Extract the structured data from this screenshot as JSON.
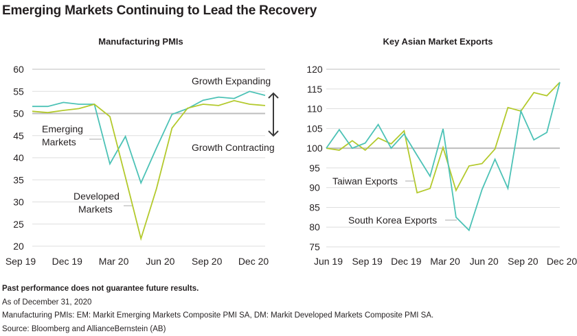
{
  "title": "Emerging Markets Continuing to Lead the Recovery",
  "colors": {
    "teal": "#4cc2b6",
    "green": "#b3c92b",
    "grid": "#dedede",
    "baseline": "#bdbdbd",
    "text": "#231f20",
    "arrow": "#3a3a3a"
  },
  "chart_data": [
    {
      "type": "line",
      "title": "Manufacturing PMIs",
      "xlabel": "",
      "ylabel": "",
      "ylim": [
        20,
        60
      ],
      "yticks": [
        20,
        25,
        30,
        35,
        40,
        45,
        50,
        55,
        60
      ],
      "baseline": 50,
      "grid": true,
      "x": [
        "Sep 19",
        "Oct 19",
        "Nov 19",
        "Dec 19",
        "Jan 20",
        "Feb 20",
        "Mar 20",
        "Apr 20",
        "May 20",
        "Jun 20",
        "Jul 20",
        "Aug 20",
        "Sep 20",
        "Oct 20",
        "Nov 20",
        "Dec 20"
      ],
      "xtick_labels": [
        "Sep 19",
        "Dec 19",
        "Mar 20",
        "Jun 20",
        "Sep 20",
        "Dec 20"
      ],
      "series": [
        {
          "name": "Emerging Markets",
          "color": "teal",
          "values": [
            51.6,
            51.6,
            52.5,
            52.1,
            52.1,
            38.6,
            44.8,
            34.3,
            42.2,
            49.8,
            51.1,
            53.0,
            53.7,
            53.4,
            55.0,
            54.1
          ]
        },
        {
          "name": "Developed Markets",
          "color": "green",
          "values": [
            50.5,
            50.2,
            50.7,
            51.1,
            52.1,
            49.3,
            35.6,
            21.7,
            33.0,
            46.7,
            51.2,
            52.1,
            51.8,
            52.9,
            52.1,
            51.8
          ]
        }
      ],
      "annotations": {
        "emerging_label": [
          "Emerging",
          "Markets"
        ],
        "developed_label": [
          "Developed",
          "Markets"
        ],
        "growth_expanding": "Growth Expanding",
        "growth_contracting": "Growth Contracting"
      }
    },
    {
      "type": "line",
      "title": "Key Asian Market Exports",
      "xlabel": "",
      "ylabel": "",
      "ylim": [
        75,
        120
      ],
      "yticks": [
        75,
        80,
        85,
        90,
        95,
        100,
        105,
        110,
        115,
        120
      ],
      "baseline": 100,
      "grid": true,
      "x": [
        "Jun 19",
        "Jul 19",
        "Aug 19",
        "Sep 19",
        "Oct 19",
        "Nov 19",
        "Dec 19",
        "Jan 20",
        "Feb 20",
        "Mar 20",
        "Apr 20",
        "May 20",
        "Jun 20",
        "Jul 20",
        "Aug 20",
        "Sep 20",
        "Oct 20",
        "Nov 20",
        "Dec 20"
      ],
      "xtick_labels": [
        "Jun 19",
        "Sep 19",
        "Dec 19",
        "Mar 20",
        "Jun 20",
        "Sep 20",
        "Dec 20"
      ],
      "series": [
        {
          "name": "Taiwan Exports",
          "color": "green",
          "values": [
            100,
            99.5,
            101.9,
            99.5,
            102.6,
            101.1,
            104.4,
            88.7,
            89.8,
            100.2,
            89.3,
            95.5,
            96.1,
            99.8,
            110.3,
            109.4,
            114.1,
            113.3,
            116.7
          ]
        },
        {
          "name": "South Korea Exports",
          "color": "teal",
          "values": [
            100,
            104.7,
            100,
            101.3,
            106.0,
            100,
            103.6,
            98.2,
            92.9,
            104.9,
            82.5,
            79.2,
            89.5,
            97.2,
            89.8,
            109.4,
            102.1,
            104.0,
            116.7
          ]
        }
      ],
      "annotations": {
        "taiwan_label": "Taiwan Exports",
        "korea_label": "South Korea Exports"
      }
    }
  ],
  "footer": {
    "disclaimer": "Past performance does not guarantee future results.",
    "as_of": "As of December 31, 2020",
    "note": "Manufacturing PMIs: EM: Markit Emerging Markets Composite PMI SA, DM: Markit Developed Markets Composite PMI SA.",
    "source": "Source: Bloomberg and AllianceBernstein (AB)"
  }
}
